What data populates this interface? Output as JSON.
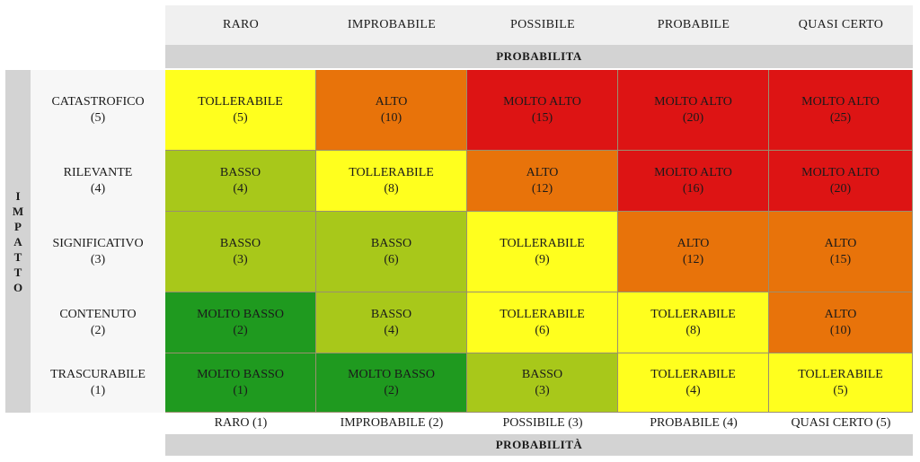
{
  "top_header": [
    "RARO",
    "IMPROBABILE",
    "POSSIBILE",
    "PROBABILE",
    "QUASI CERTO"
  ],
  "top_axis_title": "PROBABILITA",
  "side_axis_title": [
    "I",
    "M",
    "P",
    "A",
    "T",
    "T",
    "O"
  ],
  "rows": [
    {
      "label": "CATASTROFICO",
      "score": "(5)"
    },
    {
      "label": "RILEVANTE",
      "score": "(4)"
    },
    {
      "label": "SIGNIFICATIVO",
      "score": "(3)"
    },
    {
      "label": "CONTENUTO",
      "score": "(2)"
    },
    {
      "label": "TRASCURABILE",
      "score": "(1)"
    }
  ],
  "matrix": [
    [
      {
        "level": "TOLLERABILE",
        "value": "(5)"
      },
      {
        "level": "ALTO",
        "value": "(10)"
      },
      {
        "level": "MOLTO ALTO",
        "value": "(15)"
      },
      {
        "level": "MOLTO ALTO",
        "value": "(20)"
      },
      {
        "level": "MOLTO ALTO",
        "value": "(25)"
      }
    ],
    [
      {
        "level": "BASSO",
        "value": "(4)"
      },
      {
        "level": "TOLLERABILE",
        "value": "(8)"
      },
      {
        "level": "ALTO",
        "value": "(12)"
      },
      {
        "level": "MOLTO ALTO",
        "value": "(16)"
      },
      {
        "level": "MOLTO ALTO",
        "value": "(20)"
      }
    ],
    [
      {
        "level": "BASSO",
        "value": "(3)"
      },
      {
        "level": "BASSO",
        "value": "(6)"
      },
      {
        "level": "TOLLERABILE",
        "value": "(9)"
      },
      {
        "level": "ALTO",
        "value": "(12)"
      },
      {
        "level": "ALTO",
        "value": "(15)"
      }
    ],
    [
      {
        "level": "MOLTO BASSO",
        "value": "(2)"
      },
      {
        "level": "BASSO",
        "value": "(4)"
      },
      {
        "level": "TOLLERABILE",
        "value": "(6)"
      },
      {
        "level": "TOLLERABILE",
        "value": "(8)"
      },
      {
        "level": "ALTO",
        "value": "(10)"
      }
    ],
    [
      {
        "level": "MOLTO BASSO",
        "value": "(1)"
      },
      {
        "level": "MOLTO BASSO",
        "value": "(2)"
      },
      {
        "level": "BASSO",
        "value": "(3)"
      },
      {
        "level": "TOLLERABILE",
        "value": "(4)"
      },
      {
        "level": "TOLLERABILE",
        "value": "(5)"
      }
    ]
  ],
  "level_colors": {
    "MOLTO BASSO": "#1f9a1f",
    "BASSO": "#a8c81a",
    "TOLLERABILE": "#ffff1e",
    "ALTO": "#e8730a",
    "MOLTO ALTO": "#dd1414"
  },
  "bottom_header": [
    "RARO (1)",
    "IMPROBABILE (2)",
    "POSSIBILE (3)",
    "PROBABILE (4)",
    "QUASI CERTO (5)"
  ],
  "bottom_axis_title": "PROBABILITÀ"
}
